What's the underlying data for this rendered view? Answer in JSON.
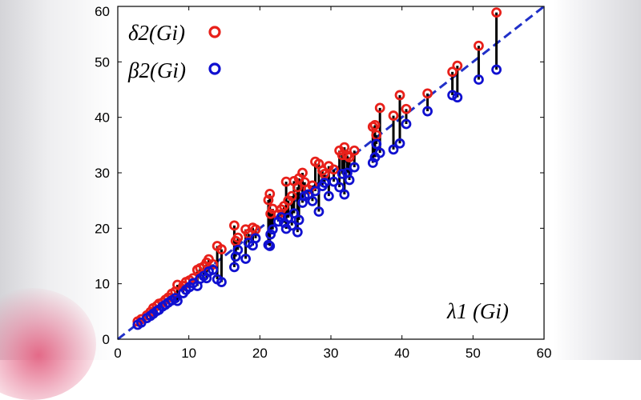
{
  "chart_data": {
    "type": "scatter",
    "xlim": [
      0,
      60
    ],
    "ylim": [
      0,
      60
    ],
    "xticks": [
      0,
      10,
      20,
      30,
      40,
      50,
      60
    ],
    "yticks": [
      0,
      10,
      20,
      30,
      40,
      50,
      60
    ],
    "xlabel": "λ1 (Gi)",
    "legend": [
      {
        "label": "δ2(Gi)",
        "color": "#e8201a"
      },
      {
        "label": "β2(Gi)",
        "color": "#1010d0"
      }
    ],
    "reference_line": {
      "from": [
        0,
        0
      ],
      "to": [
        60,
        60
      ],
      "style": "dashed",
      "color": "#2030c8"
    },
    "series": [
      {
        "name": "δ2(Gi)",
        "color": "#e8201a",
        "points": [
          [
            2.8,
            3.2
          ],
          [
            3.3,
            3.6
          ],
          [
            4.1,
            4.3
          ],
          [
            4.6,
            4.9
          ],
          [
            5.0,
            5.6
          ],
          [
            5.5,
            6.0
          ],
          [
            5.8,
            6.4
          ],
          [
            6.3,
            6.6
          ],
          [
            6.7,
            7.1
          ],
          [
            7.1,
            7.5
          ],
          [
            7.6,
            8.2
          ],
          [
            8.1,
            8.6
          ],
          [
            8.4,
            9.8
          ],
          [
            9.2,
            9.6
          ],
          [
            9.6,
            10.3
          ],
          [
            10.1,
            10.6
          ],
          [
            10.6,
            11.0
          ],
          [
            11.2,
            12.5
          ],
          [
            11.6,
            12.8
          ],
          [
            12.1,
            13.1
          ],
          [
            12.5,
            13.8
          ],
          [
            12.8,
            14.4
          ],
          [
            13.4,
            13.5
          ],
          [
            14.0,
            16.8
          ],
          [
            14.6,
            16.2
          ],
          [
            16.4,
            20.5
          ],
          [
            16.6,
            17.7
          ],
          [
            16.9,
            18.3
          ],
          [
            18.0,
            19.8
          ],
          [
            18.4,
            19.0
          ],
          [
            19.0,
            20.1
          ],
          [
            19.4,
            19.8
          ],
          [
            21.2,
            25.1
          ],
          [
            21.4,
            26.2
          ],
          [
            21.5,
            22.6
          ],
          [
            21.8,
            23.5
          ],
          [
            22.6,
            22.5
          ],
          [
            23.0,
            23.4
          ],
          [
            23.4,
            24.0
          ],
          [
            23.7,
            28.4
          ],
          [
            24.0,
            25.0
          ],
          [
            24.5,
            25.8
          ],
          [
            24.8,
            28.5
          ],
          [
            25.3,
            27.4
          ],
          [
            25.5,
            29.0
          ],
          [
            26.0,
            30.0
          ],
          [
            26.3,
            28.3
          ],
          [
            26.8,
            27.0
          ],
          [
            27.4,
            27.7
          ],
          [
            27.8,
            32.0
          ],
          [
            28.3,
            31.6
          ],
          [
            28.8,
            30.4
          ],
          [
            29.1,
            29.8
          ],
          [
            29.7,
            31.2
          ],
          [
            30.4,
            30.6
          ],
          [
            31.2,
            34.0
          ],
          [
            31.6,
            33.2
          ],
          [
            31.9,
            34.6
          ],
          [
            32.3,
            33.1
          ],
          [
            32.6,
            32.8
          ],
          [
            33.3,
            34.0
          ],
          [
            35.9,
            38.3
          ],
          [
            36.2,
            38.6
          ],
          [
            36.4,
            36.8
          ],
          [
            36.9,
            41.7
          ],
          [
            38.8,
            40.3
          ],
          [
            39.7,
            44.0
          ],
          [
            40.6,
            41.5
          ],
          [
            43.6,
            44.3
          ],
          [
            47.1,
            48.2
          ],
          [
            47.8,
            49.3
          ],
          [
            50.8,
            52.9
          ],
          [
            53.3,
            58.9
          ]
        ]
      },
      {
        "name": "β2(Gi)",
        "color": "#1010d0",
        "points": [
          [
            2.8,
            2.6
          ],
          [
            3.3,
            3.0
          ],
          [
            4.1,
            3.8
          ],
          [
            4.6,
            4.2
          ],
          [
            5.0,
            4.6
          ],
          [
            5.5,
            5.1
          ],
          [
            5.8,
            5.3
          ],
          [
            6.3,
            5.9
          ],
          [
            6.7,
            6.2
          ],
          [
            7.1,
            6.6
          ],
          [
            7.6,
            7.0
          ],
          [
            8.1,
            7.4
          ],
          [
            8.4,
            6.9
          ],
          [
            9.2,
            8.3
          ],
          [
            9.6,
            8.9
          ],
          [
            10.1,
            9.4
          ],
          [
            10.6,
            10.1
          ],
          [
            11.2,
            9.6
          ],
          [
            11.6,
            10.9
          ],
          [
            12.1,
            11.4
          ],
          [
            12.5,
            11.0
          ],
          [
            12.8,
            12.2
          ],
          [
            13.4,
            12.5
          ],
          [
            14.0,
            10.8
          ],
          [
            14.6,
            10.3
          ],
          [
            16.4,
            13.0
          ],
          [
            16.6,
            14.9
          ],
          [
            16.9,
            16.1
          ],
          [
            18.0,
            14.5
          ],
          [
            18.4,
            17.4
          ],
          [
            19.0,
            16.9
          ],
          [
            19.4,
            18.2
          ],
          [
            21.2,
            17.0
          ],
          [
            21.4,
            16.8
          ],
          [
            21.5,
            18.9
          ],
          [
            21.8,
            19.8
          ],
          [
            22.6,
            21.2
          ],
          [
            23.0,
            22.0
          ],
          [
            23.4,
            21.0
          ],
          [
            23.7,
            19.9
          ],
          [
            24.0,
            21.9
          ],
          [
            24.5,
            20.5
          ],
          [
            24.8,
            22.7
          ],
          [
            25.3,
            19.3
          ],
          [
            25.5,
            21.5
          ],
          [
            26.0,
            24.6
          ],
          [
            26.3,
            25.8
          ],
          [
            26.8,
            26.1
          ],
          [
            27.4,
            24.9
          ],
          [
            27.8,
            26.7
          ],
          [
            28.3,
            23.0
          ],
          [
            28.8,
            27.6
          ],
          [
            29.1,
            28.2
          ],
          [
            29.7,
            25.8
          ],
          [
            30.4,
            28.4
          ],
          [
            31.2,
            27.4
          ],
          [
            31.6,
            29.8
          ],
          [
            31.9,
            26.1
          ],
          [
            32.3,
            30.0
          ],
          [
            32.6,
            28.7
          ],
          [
            33.3,
            31.0
          ],
          [
            35.9,
            31.8
          ],
          [
            36.2,
            32.8
          ],
          [
            36.4,
            35.2
          ],
          [
            36.9,
            33.6
          ],
          [
            38.8,
            34.2
          ],
          [
            39.7,
            35.3
          ],
          [
            40.6,
            38.8
          ],
          [
            43.6,
            41.1
          ],
          [
            47.1,
            44.0
          ],
          [
            47.8,
            43.6
          ],
          [
            50.8,
            46.8
          ],
          [
            53.3,
            48.6
          ]
        ]
      }
    ]
  }
}
